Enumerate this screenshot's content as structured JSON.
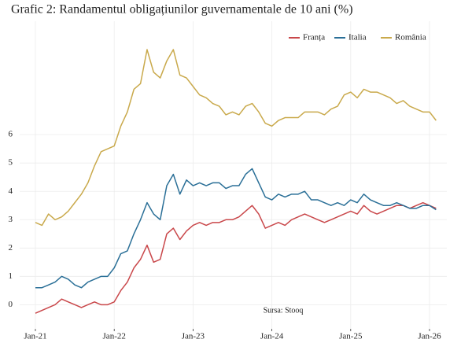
{
  "chart_data": {
    "type": "line",
    "title": "Grafic 2: Randamentul obligațiunilor guvernamentale de 10 ani (%)",
    "annotation": "Sursa: Stooq",
    "x": [
      "2021-01",
      "2021-02",
      "2021-03",
      "2021-04",
      "2021-05",
      "2021-06",
      "2021-07",
      "2021-08",
      "2021-09",
      "2021-10",
      "2021-11",
      "2021-12",
      "2022-01",
      "2022-02",
      "2022-03",
      "2022-04",
      "2022-05",
      "2022-06",
      "2022-07",
      "2022-08",
      "2022-09",
      "2022-10",
      "2022-11",
      "2022-12",
      "2023-01",
      "2023-02",
      "2023-03",
      "2023-04",
      "2023-05",
      "2023-06",
      "2023-07",
      "2023-08",
      "2023-09",
      "2023-10",
      "2023-11",
      "2023-12",
      "2024-01",
      "2024-02",
      "2024-03",
      "2024-04",
      "2024-05",
      "2024-06",
      "2024-07",
      "2024-08",
      "2024-09",
      "2024-10",
      "2024-11",
      "2024-12",
      "2025-01",
      "2025-02",
      "2025-03",
      "2025-04",
      "2025-05",
      "2025-06",
      "2025-07",
      "2025-08",
      "2025-09",
      "2025-10",
      "2025-11",
      "2025-12",
      "2026-01",
      "2026-02"
    ],
    "series": [
      {
        "name": "Franța",
        "color": "#c9474a",
        "values": [
          -0.3,
          -0.2,
          -0.1,
          0.0,
          0.2,
          0.1,
          0.0,
          -0.1,
          0.0,
          0.1,
          0.0,
          0.0,
          0.1,
          0.5,
          0.8,
          1.3,
          1.6,
          2.1,
          1.5,
          1.6,
          2.5,
          2.7,
          2.3,
          2.6,
          2.8,
          2.9,
          2.8,
          2.9,
          2.9,
          3.0,
          3.0,
          3.1,
          3.3,
          3.5,
          3.2,
          2.7,
          2.8,
          2.9,
          2.8,
          3.0,
          3.1,
          3.2,
          3.1,
          3.0,
          2.9,
          3.0,
          3.1,
          3.2,
          3.3,
          3.2,
          3.5,
          3.3,
          3.2,
          3.3,
          3.4,
          3.5,
          3.5,
          3.4,
          3.5,
          3.6,
          3.5,
          3.4
        ]
      },
      {
        "name": "Italia",
        "color": "#2a6f97",
        "values": [
          0.6,
          0.6,
          0.7,
          0.8,
          1.0,
          0.9,
          0.7,
          0.6,
          0.8,
          0.9,
          1.0,
          1.0,
          1.3,
          1.8,
          1.9,
          2.5,
          3.0,
          3.6,
          3.2,
          3.0,
          4.2,
          4.6,
          3.9,
          4.4,
          4.2,
          4.3,
          4.2,
          4.3,
          4.3,
          4.1,
          4.2,
          4.2,
          4.6,
          4.8,
          4.3,
          3.8,
          3.7,
          3.9,
          3.8,
          3.9,
          3.9,
          4.0,
          3.7,
          3.7,
          3.6,
          3.5,
          3.6,
          3.5,
          3.7,
          3.6,
          3.9,
          3.7,
          3.6,
          3.5,
          3.5,
          3.6,
          3.5,
          3.4,
          3.4,
          3.5,
          3.5,
          3.35
        ]
      },
      {
        "name": "România",
        "color": "#c9a94b",
        "values": [
          2.9,
          2.8,
          3.2,
          3.0,
          3.1,
          3.3,
          3.6,
          3.9,
          4.3,
          4.9,
          5.4,
          5.5,
          5.6,
          6.3,
          6.8,
          7.6,
          7.8,
          9.0,
          8.2,
          8.0,
          8.6,
          9.0,
          8.1,
          8.0,
          7.7,
          7.4,
          7.3,
          7.1,
          7.0,
          6.7,
          6.8,
          6.7,
          7.0,
          7.1,
          6.8,
          6.4,
          6.3,
          6.5,
          6.6,
          6.6,
          6.6,
          6.8,
          6.8,
          6.8,
          6.7,
          6.9,
          7.0,
          7.4,
          7.5,
          7.3,
          7.6,
          7.5,
          7.5,
          7.4,
          7.3,
          7.1,
          7.2,
          7.0,
          6.9,
          6.8,
          6.8,
          6.5
        ]
      }
    ],
    "xticks": [
      {
        "value": "2021-01",
        "label": "Jan-21"
      },
      {
        "value": "2022-01",
        "label": "Jan-22"
      },
      {
        "value": "2023-01",
        "label": "Jan-23"
      },
      {
        "value": "2024-01",
        "label": "Jan-24"
      },
      {
        "value": "2025-01",
        "label": "Jan-25"
      },
      {
        "value": "2026-01",
        "label": "Jan-26"
      }
    ],
    "ylim": [
      -0.85,
      10.0
    ],
    "yticks": [
      0,
      1,
      2,
      3,
      4,
      5,
      6
    ],
    "grid": true,
    "legend": "top-right"
  }
}
